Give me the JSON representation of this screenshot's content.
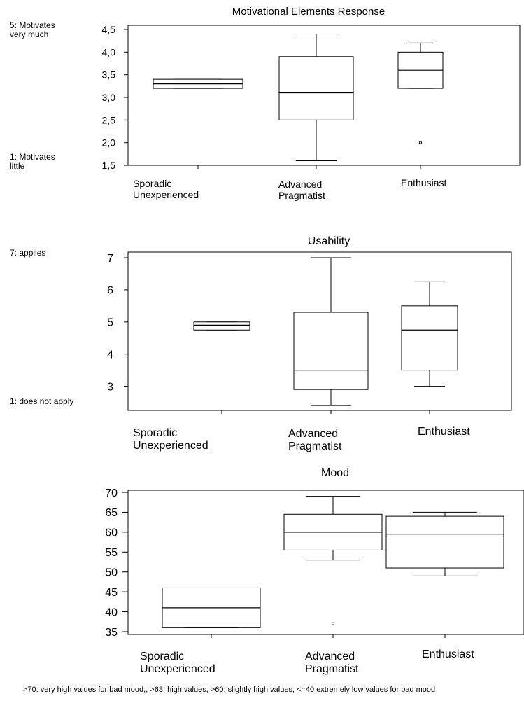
{
  "chart_data": [
    {
      "type": "box",
      "title": "Motivational Elements Response",
      "categories": [
        "Sporadic\nUnexperienced",
        "Advanced\nPragmatist",
        "Enthusiast"
      ],
      "yticks": [
        "4,5",
        "4,0",
        "3,5",
        "3,0",
        "2,5",
        "2,0",
        "1,5"
      ],
      "ylim": [
        1.5,
        4.5
      ],
      "side_notes": [
        "5: Motivates\nvery much",
        "1: Motivates\nlittle"
      ],
      "boxes": [
        {
          "whisker_low": 3.2,
          "q1": 3.2,
          "median": 3.3,
          "q3": 3.4,
          "whisker_high": 3.4,
          "outliers": []
        },
        {
          "whisker_low": 1.6,
          "q1": 2.5,
          "median": 3.1,
          "q3": 3.9,
          "whisker_high": 4.4,
          "outliers": []
        },
        {
          "whisker_low": 3.2,
          "q1": 3.2,
          "median": 3.6,
          "q3": 4.0,
          "whisker_high": 4.2,
          "outliers": [
            2.0
          ]
        }
      ]
    },
    {
      "type": "box",
      "title": "Usability",
      "categories": [
        "Sporadic\nUnexperienced",
        "Advanced\nPragmatist",
        "Enthusiast"
      ],
      "yticks": [
        "7",
        "6",
        "5",
        "4",
        "3"
      ],
      "ylim": [
        2.25,
        7
      ],
      "side_notes": [
        "7: applies",
        "1: does not apply"
      ],
      "boxes": [
        {
          "whisker_low": 4.75,
          "q1": 4.75,
          "median": 4.9,
          "q3": 5.0,
          "whisker_high": 5.0,
          "outliers": []
        },
        {
          "whisker_low": 2.4,
          "q1": 2.9,
          "median": 3.5,
          "q3": 5.3,
          "whisker_high": 7.0,
          "outliers": []
        },
        {
          "whisker_low": 3.0,
          "q1": 3.5,
          "median": 4.75,
          "q3": 5.5,
          "whisker_high": 6.25,
          "outliers": []
        }
      ]
    },
    {
      "type": "box",
      "title": "Mood",
      "categories": [
        "Sporadic\nUnexperienced",
        "Advanced\nPragmatist",
        "Enthusiast"
      ],
      "yticks": [
        "70",
        "65",
        "60",
        "55",
        "50",
        "45",
        "40",
        "35"
      ],
      "ylim": [
        35,
        70
      ],
      "side_notes": [],
      "boxes": [
        {
          "whisker_low": 36,
          "q1": 36,
          "median": 41,
          "q3": 46,
          "whisker_high": 46,
          "outliers": []
        },
        {
          "whisker_low": 53,
          "q1": 55.5,
          "median": 60,
          "q3": 64.5,
          "whisker_high": 69,
          "outliers": [
            37
          ]
        },
        {
          "whisker_low": 49,
          "q1": 51,
          "median": 59.5,
          "q3": 64,
          "whisker_high": 65,
          "outliers": []
        }
      ]
    }
  ],
  "footer": ">70: very high values for bad mood,, >63: high values, >60: slightly high values, <=40 extremely low values for bad mood"
}
